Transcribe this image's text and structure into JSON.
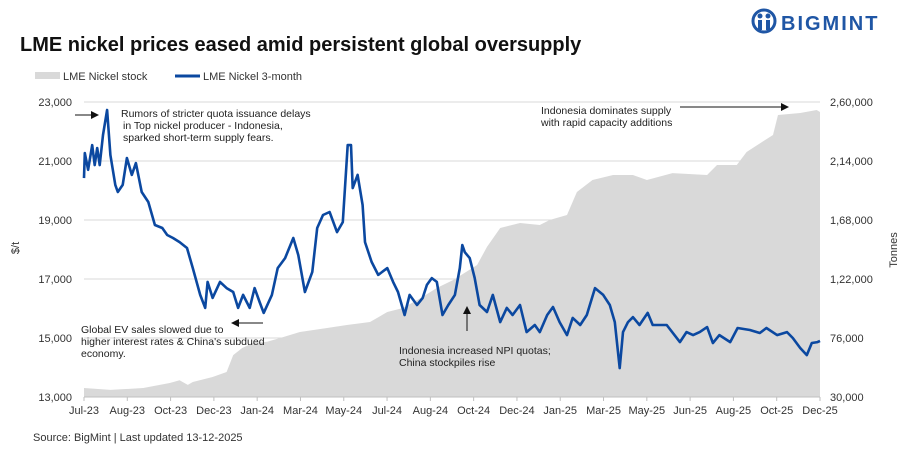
{
  "logo": {
    "text": "BIGMINT",
    "color": "#1f56a5"
  },
  "chart_data": {
    "type": "line",
    "title": "LME nickel prices eased amid persistent global oversupply",
    "source": "Source: BigMint | Last updated 13-12-2025",
    "ylabel_left": "$/t",
    "ylabel_right": "Tonnes",
    "ylim_left": [
      13000,
      23000
    ],
    "ylim_right": [
      30000,
      260000
    ],
    "yticks_left": [
      "23,000",
      "21,000",
      "19,000",
      "17,000",
      "15,000",
      "13,000"
    ],
    "yticks_right": [
      "2,60,000",
      "2,14,000",
      "1,68,000",
      "1,22,000",
      "76,000",
      "30,000"
    ],
    "xticks": [
      "Jul-23",
      "Aug-23",
      "Oct-23",
      "Dec-23",
      "Jan-24",
      "Mar-24",
      "May-24",
      "Jul-24",
      "Aug-24",
      "Oct-24",
      "Dec-24",
      "Jan-25",
      "Mar-25",
      "May-25",
      "Jun-25",
      "Aug-25",
      "Oct-25",
      "Dec-25"
    ],
    "xrange": [
      "2023-07-03",
      "2025-12-12"
    ],
    "grid": "horizontal",
    "legend_position": "top-left",
    "series": [
      {
        "name": "LME Nickel stock",
        "type": "area",
        "axis": "right",
        "color": "#d9d9d9",
        "points": [
          [
            "2023-07-03",
            37000
          ],
          [
            "2023-08-04",
            35500
          ],
          [
            "2023-09-13",
            37000
          ],
          [
            "2023-10-15",
            40900
          ],
          [
            "2023-10-27",
            43000
          ],
          [
            "2023-11-06",
            39400
          ],
          [
            "2023-11-12",
            41700
          ],
          [
            "2023-12-06",
            45600
          ],
          [
            "2023-12-23",
            49500
          ],
          [
            "2023-12-31",
            62700
          ],
          [
            "2024-01-11",
            68200
          ],
          [
            "2024-01-24",
            72100
          ],
          [
            "2024-02-10",
            73000
          ],
          [
            "2024-02-26",
            76000
          ],
          [
            "2024-03-21",
            80700
          ],
          [
            "2024-04-23",
            83800
          ],
          [
            "2024-05-17",
            86100
          ],
          [
            "2024-06-14",
            88500
          ],
          [
            "2024-07-05",
            96300
          ],
          [
            "2024-07-24",
            99400
          ],
          [
            "2024-08-14",
            107000
          ],
          [
            "2024-09-03",
            115000
          ],
          [
            "2024-09-23",
            121200
          ],
          [
            "2024-09-27",
            122800
          ],
          [
            "2024-10-22",
            132900
          ],
          [
            "2024-11-03",
            147000
          ],
          [
            "2024-11-19",
            161800
          ],
          [
            "2024-12-13",
            165700
          ],
          [
            "2025-01-06",
            164100
          ],
          [
            "2025-01-18",
            168000
          ],
          [
            "2025-02-08",
            171900
          ],
          [
            "2025-02-20",
            189800
          ],
          [
            "2025-03-11",
            199200
          ],
          [
            "2025-04-05",
            203100
          ],
          [
            "2025-04-29",
            203100
          ],
          [
            "2025-05-16",
            199200
          ],
          [
            "2025-06-16",
            204600
          ],
          [
            "2025-07-28",
            203100
          ],
          [
            "2025-08-09",
            210900
          ],
          [
            "2025-09-02",
            210900
          ],
          [
            "2025-09-14",
            221000
          ],
          [
            "2025-09-27",
            226500
          ],
          [
            "2025-10-16",
            234300
          ],
          [
            "2025-10-22",
            249900
          ],
          [
            "2025-11-18",
            251400
          ],
          [
            "2025-12-08",
            253800
          ],
          [
            "2025-12-12",
            252200
          ]
        ]
      },
      {
        "name": "LME Nickel 3-month",
        "type": "line",
        "axis": "left",
        "color": "#0b48a0",
        "points": [
          [
            "2023-07-03",
            20420
          ],
          [
            "2023-07-04",
            21270
          ],
          [
            "2023-07-08",
            20700
          ],
          [
            "2023-07-13",
            21540
          ],
          [
            "2023-07-16",
            20860
          ],
          [
            "2023-07-19",
            21440
          ],
          [
            "2023-07-22",
            20860
          ],
          [
            "2023-07-26",
            21880
          ],
          [
            "2023-07-31",
            22730
          ],
          [
            "2023-08-04",
            21200
          ],
          [
            "2023-08-10",
            20190
          ],
          [
            "2023-08-13",
            19950
          ],
          [
            "2023-08-19",
            20190
          ],
          [
            "2023-08-24",
            21100
          ],
          [
            "2023-08-30",
            20530
          ],
          [
            "2023-09-04",
            20930
          ],
          [
            "2023-09-11",
            19950
          ],
          [
            "2023-09-19",
            19610
          ],
          [
            "2023-09-27",
            18830
          ],
          [
            "2023-10-06",
            18730
          ],
          [
            "2023-10-12",
            18490
          ],
          [
            "2023-10-19",
            18390
          ],
          [
            "2023-10-27",
            18250
          ],
          [
            "2023-11-05",
            18050
          ],
          [
            "2023-11-12",
            17370
          ],
          [
            "2023-11-21",
            16460
          ],
          [
            "2023-11-27",
            16020
          ],
          [
            "2023-11-30",
            16900
          ],
          [
            "2023-12-06",
            16360
          ],
          [
            "2023-12-15",
            16900
          ],
          [
            "2023-12-23",
            16690
          ],
          [
            "2023-12-31",
            16560
          ],
          [
            "2024-01-06",
            16020
          ],
          [
            "2024-01-12",
            16460
          ],
          [
            "2024-01-20",
            16020
          ],
          [
            "2024-01-26",
            16690
          ],
          [
            "2024-02-01",
            16220
          ],
          [
            "2024-02-06",
            15850
          ],
          [
            "2024-02-16",
            16460
          ],
          [
            "2024-02-23",
            17370
          ],
          [
            "2024-03-03",
            17710
          ],
          [
            "2024-03-13",
            18390
          ],
          [
            "2024-03-19",
            17810
          ],
          [
            "2024-03-27",
            16560
          ],
          [
            "2024-04-05",
            17240
          ],
          [
            "2024-04-11",
            18730
          ],
          [
            "2024-04-18",
            19170
          ],
          [
            "2024-04-26",
            19270
          ],
          [
            "2024-05-05",
            18590
          ],
          [
            "2024-05-12",
            18930
          ],
          [
            "2024-05-18",
            21540
          ],
          [
            "2024-05-22",
            21540
          ],
          [
            "2024-05-24",
            20080
          ],
          [
            "2024-05-30",
            20530
          ],
          [
            "2024-06-05",
            19510
          ],
          [
            "2024-06-08",
            18250
          ],
          [
            "2024-06-16",
            17580
          ],
          [
            "2024-06-24",
            17140
          ],
          [
            "2024-07-05",
            17370
          ],
          [
            "2024-07-12",
            16900
          ],
          [
            "2024-07-18",
            16560
          ],
          [
            "2024-07-26",
            15780
          ],
          [
            "2024-08-01",
            16460
          ],
          [
            "2024-08-10",
            16120
          ],
          [
            "2024-08-17",
            16360
          ],
          [
            "2024-08-22",
            16800
          ],
          [
            "2024-08-28",
            17030
          ],
          [
            "2024-09-03",
            16900
          ],
          [
            "2024-09-10",
            15780
          ],
          [
            "2024-09-17",
            16120
          ],
          [
            "2024-09-25",
            16460
          ],
          [
            "2024-10-01",
            17370
          ],
          [
            "2024-10-04",
            18150
          ],
          [
            "2024-10-07",
            17910
          ],
          [
            "2024-10-13",
            17710
          ],
          [
            "2024-10-19",
            17030
          ],
          [
            "2024-10-25",
            16120
          ],
          [
            "2024-11-03",
            15880
          ],
          [
            "2024-11-10",
            16460
          ],
          [
            "2024-11-19",
            15540
          ],
          [
            "2024-11-27",
            16020
          ],
          [
            "2024-12-04",
            15780
          ],
          [
            "2024-12-13",
            16120
          ],
          [
            "2024-12-21",
            15200
          ],
          [
            "2024-12-31",
            15440
          ],
          [
            "2025-01-06",
            15200
          ],
          [
            "2025-01-15",
            15780
          ],
          [
            "2025-01-22",
            16050
          ],
          [
            "2025-01-30",
            15540
          ],
          [
            "2025-02-08",
            15100
          ],
          [
            "2025-02-15",
            15680
          ],
          [
            "2025-02-24",
            15440
          ],
          [
            "2025-03-04",
            15780
          ],
          [
            "2025-03-14",
            16690
          ],
          [
            "2025-03-24",
            16460
          ],
          [
            "2025-04-01",
            16120
          ],
          [
            "2025-04-07",
            15540
          ],
          [
            "2025-04-13",
            13980
          ],
          [
            "2025-04-17",
            15200
          ],
          [
            "2025-04-23",
            15540
          ],
          [
            "2025-04-29",
            15710
          ],
          [
            "2025-05-07",
            15440
          ],
          [
            "2025-05-17",
            15850
          ],
          [
            "2025-05-23",
            15440
          ],
          [
            "2025-06-09",
            15440
          ],
          [
            "2025-06-25",
            14860
          ],
          [
            "2025-07-03",
            15200
          ],
          [
            "2025-07-11",
            15100
          ],
          [
            "2025-07-19",
            15200
          ],
          [
            "2025-07-28",
            15370
          ],
          [
            "2025-08-04",
            14830
          ],
          [
            "2025-08-12",
            15100
          ],
          [
            "2025-08-25",
            14860
          ],
          [
            "2025-09-03",
            15340
          ],
          [
            "2025-09-18",
            15270
          ],
          [
            "2025-09-30",
            15170
          ],
          [
            "2025-10-08",
            15340
          ],
          [
            "2025-10-21",
            15100
          ],
          [
            "2025-11-02",
            15200
          ],
          [
            "2025-11-09",
            15000
          ],
          [
            "2025-11-18",
            14660
          ],
          [
            "2025-11-26",
            14420
          ],
          [
            "2025-12-02",
            14830
          ],
          [
            "2025-12-09",
            14860
          ],
          [
            "2025-12-12",
            14900
          ]
        ]
      }
    ],
    "annotations": [
      {
        "lines": [
          "Rumors of stricter quota issuance delays",
          "in Top nickel producer - Indonesia,",
          "sparked short-term supply fears."
        ]
      },
      {
        "lines": [
          "Global EV sales slowed due to",
          "higher interest rates & China's subdued",
          "economy."
        ]
      },
      {
        "lines": [
          "Indonesia increased NPI quotas;",
          "China stockpiles rise"
        ]
      },
      {
        "lines": [
          "Indonesia dominates supply",
          "with rapid capacity additions"
        ]
      }
    ]
  }
}
